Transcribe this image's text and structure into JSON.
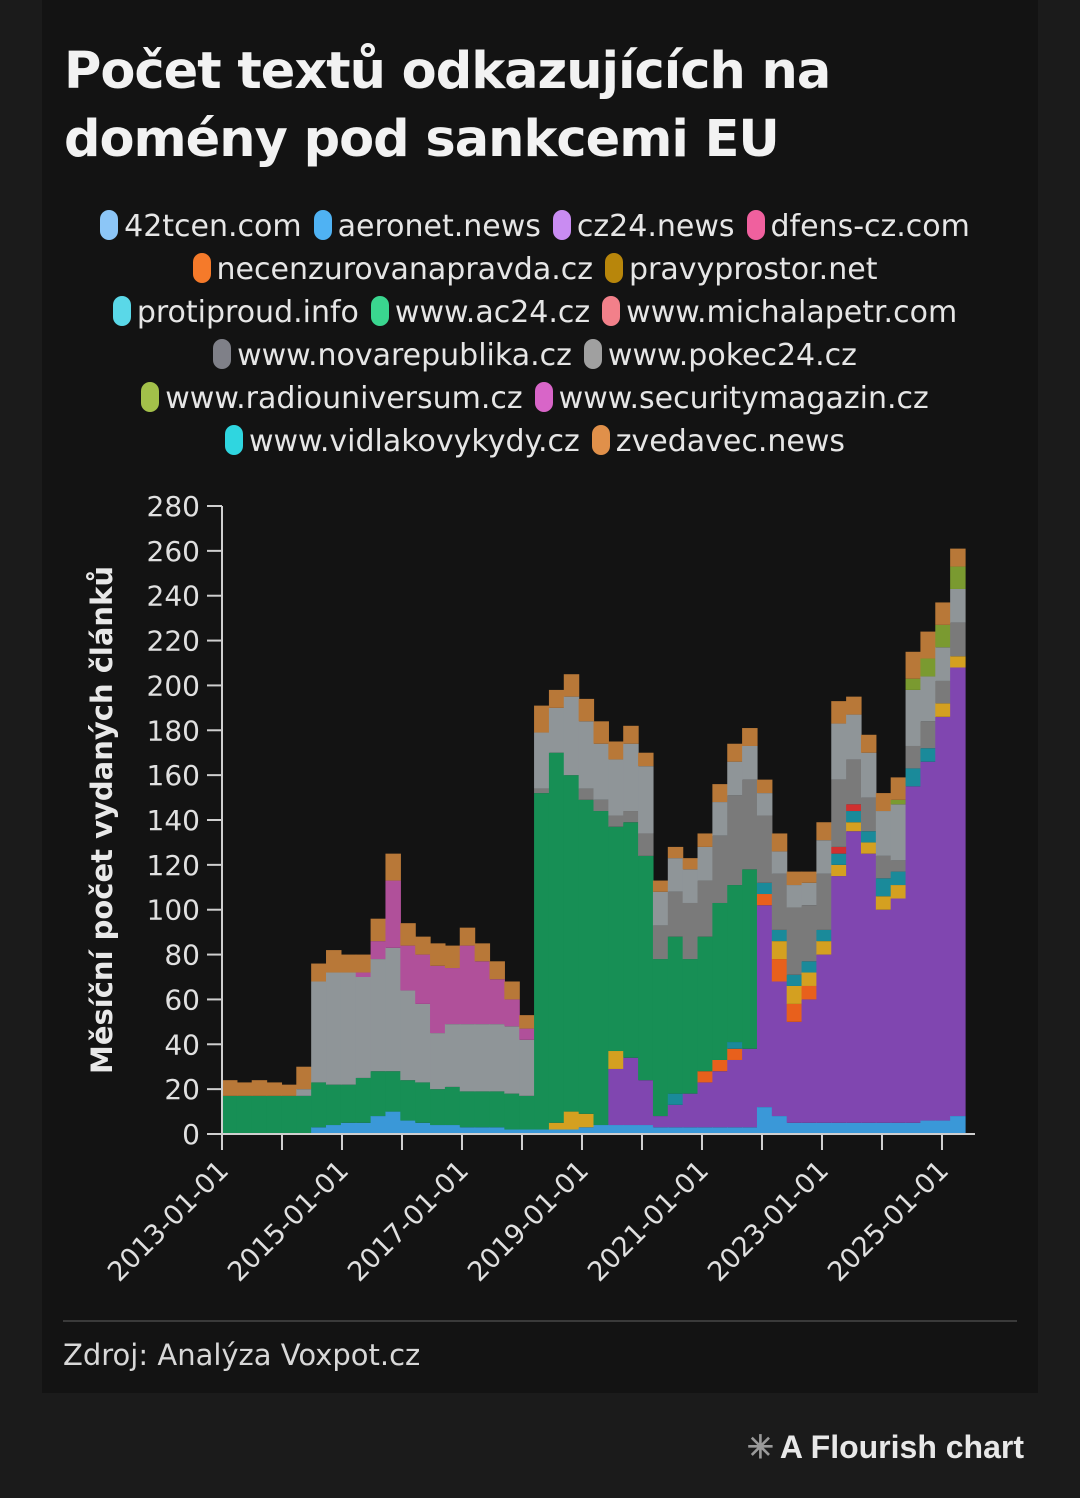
{
  "title": "Počet textů odkazujících na domény pod sankcemi EU",
  "source": "Zdroj: Analýza Voxpot.cz",
  "branding": {
    "icon": "flourish-star-icon",
    "label": "A Flourish chart"
  },
  "chart_data": {
    "type": "bar",
    "stacked": true,
    "granularity": "quarterly (approximation of monthly stacked bars)",
    "ylabel": "Měsíční počet vydaných článků",
    "ylim": [
      0,
      280
    ],
    "yticks": [
      "0",
      "20",
      "40",
      "60",
      "80",
      "100",
      "120",
      "140",
      "160",
      "180",
      "200",
      "220",
      "240",
      "260",
      "280"
    ],
    "xticks": [
      "2013-01-01",
      "2015-01-01",
      "2017-01-01",
      "2019-01-01",
      "2021-01-01",
      "2023-01-01",
      "2025-01-01"
    ],
    "x_start": "2013-01",
    "x_periods": 50,
    "legend_placement": "top",
    "series": [
      {
        "name": "42tcen.com",
        "color": "#8cc6f7",
        "chart_color": "#7ab8ea",
        "values": [
          0,
          0,
          0,
          0,
          0,
          0,
          0,
          0,
          0,
          0,
          0,
          0,
          0,
          0,
          0,
          0,
          0,
          0,
          0,
          0,
          0,
          0,
          0,
          0,
          0,
          0,
          0,
          0,
          0,
          0,
          0,
          0,
          0,
          0,
          0,
          0,
          0,
          0,
          0,
          0,
          0,
          0,
          0,
          0,
          0,
          0,
          0,
          0,
          0,
          0
        ]
      },
      {
        "name": "aeronet.news",
        "color": "#4fb2f3",
        "chart_color": "#3a98d8",
        "values": [
          0,
          0,
          0,
          0,
          0,
          0,
          3,
          4,
          5,
          5,
          8,
          10,
          6,
          5,
          4,
          4,
          3,
          3,
          3,
          2,
          2,
          2,
          2,
          2,
          3,
          4,
          4,
          4,
          4,
          3,
          3,
          3,
          3,
          3,
          3,
          3,
          12,
          8,
          5,
          5,
          5,
          5,
          5,
          5,
          5,
          5,
          5,
          6,
          6,
          8
        ]
      },
      {
        "name": "cz24.news",
        "color": "#c98cf2",
        "chart_color": "#8046b0",
        "values": [
          0,
          0,
          0,
          0,
          0,
          0,
          0,
          0,
          0,
          0,
          0,
          0,
          0,
          0,
          0,
          0,
          0,
          0,
          0,
          0,
          0,
          0,
          0,
          0,
          0,
          0,
          25,
          30,
          20,
          5,
          10,
          15,
          20,
          25,
          30,
          35,
          90,
          60,
          45,
          55,
          75,
          110,
          130,
          120,
          95,
          100,
          150,
          160,
          180,
          200
        ]
      },
      {
        "name": "dfens-cz.com",
        "color": "#f0609e",
        "chart_color": "#d04a90",
        "values": [
          0,
          0,
          0,
          0,
          0,
          0,
          0,
          0,
          0,
          0,
          0,
          0,
          0,
          0,
          0,
          0,
          0,
          0,
          0,
          0,
          0,
          0,
          0,
          0,
          0,
          0,
          0,
          0,
          0,
          0,
          0,
          0,
          0,
          0,
          0,
          0,
          0,
          0,
          0,
          0,
          0,
          0,
          0,
          0,
          0,
          0,
          0,
          0,
          0,
          0
        ]
      },
      {
        "name": "necenzurovanapravda.cz",
        "color": "#f57a2a",
        "chart_color": "#e8601c",
        "values": [
          0,
          0,
          0,
          0,
          0,
          0,
          0,
          0,
          0,
          0,
          0,
          0,
          0,
          0,
          0,
          0,
          0,
          0,
          0,
          0,
          0,
          0,
          0,
          0,
          0,
          0,
          0,
          0,
          0,
          0,
          0,
          0,
          5,
          5,
          5,
          0,
          5,
          10,
          8,
          6,
          0,
          0,
          0,
          0,
          0,
          0,
          0,
          0,
          0,
          0
        ]
      },
      {
        "name": "pravyprostor.net",
        "color": "#b8860b",
        "chart_color": "#d4a020",
        "values": [
          0,
          0,
          0,
          0,
          0,
          0,
          0,
          0,
          0,
          0,
          0,
          0,
          0,
          0,
          0,
          0,
          0,
          0,
          0,
          0,
          0,
          0,
          3,
          8,
          6,
          0,
          8,
          0,
          0,
          0,
          0,
          0,
          0,
          0,
          0,
          0,
          0,
          8,
          8,
          6,
          6,
          5,
          4,
          5,
          6,
          6,
          0,
          0,
          6,
          5
        ]
      },
      {
        "name": "protiproud.info",
        "color": "#5ad8e8",
        "chart_color": "#1a8a9a",
        "values": [
          0,
          0,
          0,
          0,
          0,
          0,
          0,
          0,
          0,
          0,
          0,
          0,
          0,
          0,
          0,
          0,
          0,
          0,
          0,
          0,
          0,
          0,
          0,
          0,
          0,
          0,
          0,
          0,
          0,
          0,
          5,
          0,
          0,
          0,
          3,
          0,
          5,
          5,
          5,
          5,
          5,
          5,
          5,
          5,
          8,
          6,
          8,
          6,
          0,
          0
        ]
      },
      {
        "name": "www.ac24.cz",
        "color": "#3ad68f",
        "chart_color": "#178f55",
        "values": [
          17,
          17,
          17,
          17,
          17,
          17,
          20,
          18,
          17,
          20,
          20,
          18,
          18,
          18,
          16,
          17,
          16,
          16,
          16,
          16,
          15,
          150,
          165,
          150,
          140,
          140,
          100,
          105,
          100,
          70,
          70,
          60,
          60,
          70,
          70,
          80,
          0,
          0,
          0,
          0,
          0,
          0,
          0,
          0,
          0,
          0,
          0,
          0,
          0,
          0
        ]
      },
      {
        "name": "www.michalapetr.com",
        "color": "#f2808a",
        "chart_color": "#d03030",
        "values": [
          0,
          0,
          0,
          0,
          0,
          0,
          0,
          0,
          0,
          0,
          0,
          0,
          0,
          0,
          0,
          0,
          0,
          0,
          0,
          0,
          0,
          0,
          0,
          0,
          0,
          0,
          0,
          0,
          0,
          0,
          0,
          0,
          0,
          0,
          0,
          0,
          0,
          0,
          0,
          0,
          0,
          3,
          3,
          0,
          0,
          0,
          0,
          0,
          0,
          0
        ]
      },
      {
        "name": "www.novarepublika.cz",
        "color": "#7f8088",
        "chart_color": "#7a7a7a",
        "values": [
          0,
          0,
          0,
          0,
          0,
          0,
          0,
          0,
          0,
          0,
          0,
          0,
          0,
          0,
          0,
          0,
          0,
          0,
          0,
          0,
          0,
          2,
          0,
          0,
          5,
          5,
          5,
          5,
          10,
          15,
          20,
          25,
          25,
          30,
          40,
          40,
          30,
          25,
          30,
          25,
          25,
          30,
          20,
          15,
          10,
          5,
          10,
          12,
          10,
          15
        ]
      },
      {
        "name": "www.pokec24.cz",
        "color": "#a0a0a0",
        "chart_color": "#8f9598",
        "values": [
          0,
          0,
          0,
          0,
          0,
          3,
          45,
          50,
          50,
          45,
          50,
          55,
          40,
          35,
          25,
          28,
          30,
          30,
          30,
          30,
          25,
          25,
          20,
          35,
          30,
          25,
          25,
          30,
          30,
          15,
          15,
          15,
          15,
          15,
          15,
          15,
          10,
          10,
          10,
          10,
          15,
          25,
          20,
          20,
          20,
          25,
          25,
          20,
          15,
          15
        ]
      },
      {
        "name": "www.radiouniversum.cz",
        "color": "#a3c04a",
        "chart_color": "#7a9a30",
        "values": [
          0,
          0,
          0,
          0,
          0,
          0,
          0,
          0,
          0,
          0,
          0,
          0,
          0,
          0,
          0,
          0,
          0,
          0,
          0,
          0,
          0,
          0,
          0,
          0,
          0,
          0,
          0,
          0,
          0,
          0,
          0,
          0,
          0,
          0,
          0,
          0,
          0,
          0,
          0,
          0,
          0,
          0,
          0,
          0,
          0,
          2,
          5,
          8,
          10,
          10
        ]
      },
      {
        "name": "www.securitymagazin.cz",
        "color": "#d865c8",
        "chart_color": "#b0509a",
        "values": [
          0,
          0,
          0,
          0,
          0,
          0,
          0,
          0,
          0,
          2,
          8,
          30,
          20,
          22,
          30,
          25,
          35,
          28,
          20,
          12,
          5,
          0,
          0,
          0,
          0,
          0,
          0,
          0,
          0,
          0,
          0,
          0,
          0,
          0,
          0,
          0,
          0,
          0,
          0,
          0,
          0,
          0,
          0,
          0,
          0,
          0,
          0,
          0,
          0,
          0
        ]
      },
      {
        "name": "www.vidlakovykydy.cz",
        "color": "#2fd6e0",
        "chart_color": "#20b0c0",
        "values": [
          0,
          0,
          0,
          0,
          0,
          0,
          0,
          0,
          0,
          0,
          0,
          0,
          0,
          0,
          0,
          0,
          0,
          0,
          0,
          0,
          0,
          0,
          0,
          0,
          0,
          0,
          0,
          0,
          0,
          0,
          0,
          0,
          0,
          0,
          0,
          0,
          0,
          0,
          0,
          0,
          0,
          0,
          0,
          0,
          0,
          0,
          0,
          0,
          0,
          0
        ]
      },
      {
        "name": "zvedavec.news",
        "color": "#e0904a",
        "chart_color": "#b87838",
        "values": [
          7,
          6,
          7,
          6,
          5,
          10,
          8,
          10,
          8,
          8,
          10,
          12,
          10,
          8,
          10,
          10,
          8,
          8,
          8,
          8,
          6,
          12,
          8,
          10,
          10,
          10,
          8,
          8,
          6,
          5,
          5,
          5,
          6,
          8,
          8,
          8,
          6,
          8,
          6,
          5,
          8,
          10,
          8,
          8,
          8,
          10,
          12,
          12,
          10,
          8
        ]
      }
    ]
  }
}
